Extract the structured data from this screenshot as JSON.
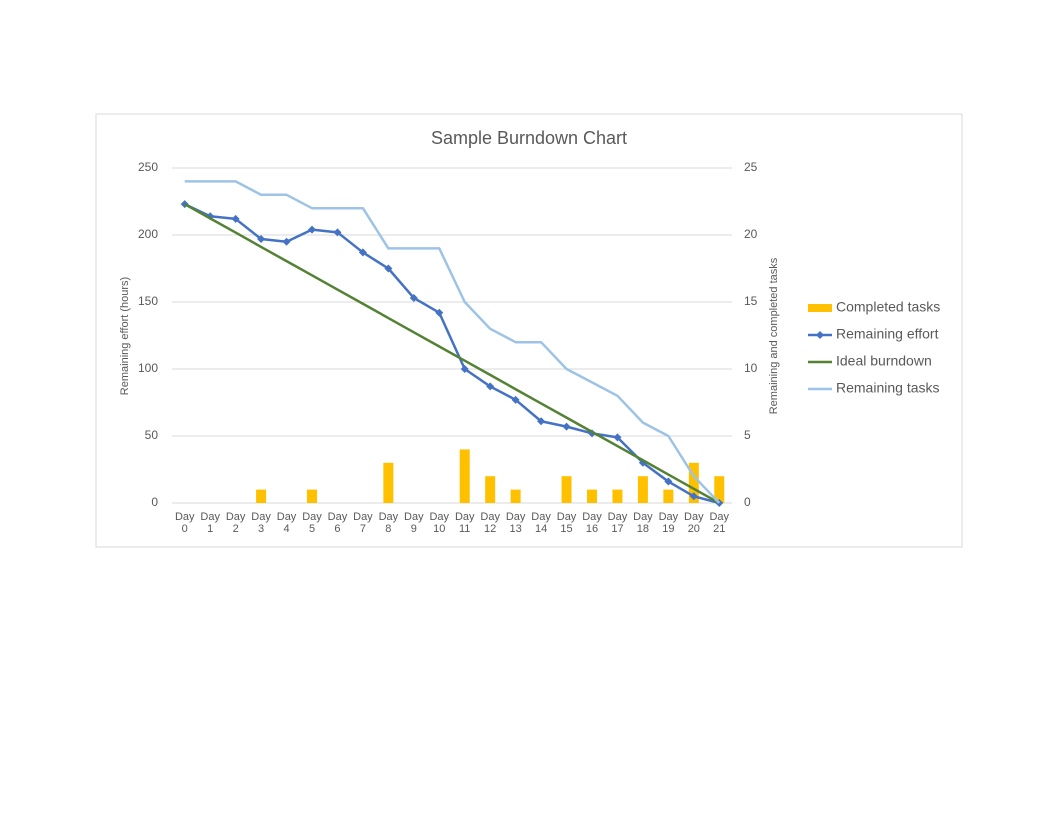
{
  "chart_data": {
    "type": "combo",
    "title": "Sample Burndown Chart",
    "ylabel": "Remaining effort (hours)",
    "y2label": "Remaining and completed tasks",
    "categories": [
      "Day 0",
      "Day 1",
      "Day 2",
      "Day 3",
      "Day 4",
      "Day 5",
      "Day 6",
      "Day 7",
      "Day 8",
      "Day 9",
      "Day 10",
      "Day 11",
      "Day 12",
      "Day 13",
      "Day 14",
      "Day 15",
      "Day 16",
      "Day 17",
      "Day 18",
      "Day 19",
      "Day 20",
      "Day 21"
    ],
    "ylim": [
      0,
      250
    ],
    "yticks": [
      0,
      50,
      100,
      150,
      200,
      250
    ],
    "y2lim": [
      0,
      25
    ],
    "y2ticks": [
      0,
      5,
      10,
      15,
      20,
      25
    ],
    "grid": true,
    "legend": "right",
    "series": [
      {
        "name": "Completed tasks",
        "type": "bar",
        "axis": "y2",
        "color": "#ffc000",
        "values": [
          0,
          0,
          0,
          1,
          0,
          1,
          0,
          0,
          3,
          0,
          0,
          4,
          2,
          1,
          0,
          2,
          1,
          1,
          2,
          1,
          3,
          2
        ]
      },
      {
        "name": "Remaining effort",
        "type": "line",
        "marker": "diamond",
        "color": "#4472c4",
        "values": [
          223,
          214,
          212,
          197,
          195,
          204,
          202,
          187,
          175,
          153,
          142,
          100,
          87,
          77,
          61,
          57,
          52,
          49,
          30,
          16,
          5,
          0
        ]
      },
      {
        "name": "Ideal burndown",
        "type": "line",
        "color": "#548235",
        "values": [
          223,
          212.4,
          201.8,
          191.1,
          180.5,
          169.9,
          159.3,
          148.7,
          138.0,
          127.4,
          116.8,
          106.2,
          95.6,
          84.9,
          74.3,
          63.7,
          53.1,
          42.5,
          31.9,
          21.2,
          10.6,
          0
        ]
      },
      {
        "name": "Remaining tasks",
        "type": "line",
        "axis": "y2",
        "color": "#9dc3e6",
        "values": [
          24,
          24,
          24,
          23,
          23,
          22,
          22,
          22,
          19,
          19,
          19,
          15,
          13,
          12,
          12,
          10,
          9,
          8,
          6,
          5,
          2,
          0
        ]
      }
    ]
  }
}
